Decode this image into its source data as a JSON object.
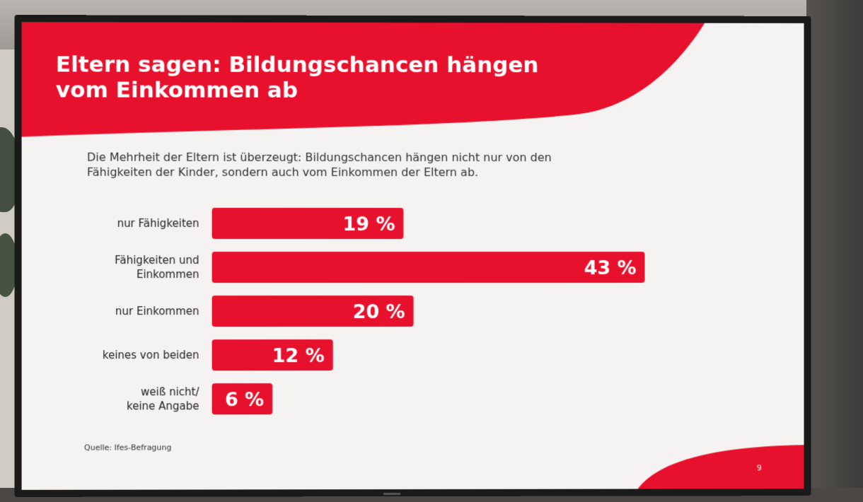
{
  "slide": {
    "title": "Eltern sagen: Bildungschancen hängen vom Einkommen ab",
    "subtitle": "Die Mehrheit der Eltern ist überzeugt: Bildungschancen hängen nicht nur von den Fähigkeiten der Kinder, sondern auch vom Einkommen der Eltern ab.",
    "source": "Quelle: Ifes-Befragung",
    "page_number": "9"
  },
  "colors": {
    "accent": "#e8112d",
    "background": "#f4f3f2",
    "text": "#333333"
  },
  "chart_data": {
    "type": "bar",
    "orientation": "horizontal",
    "categories": [
      "nur Fähigkeiten",
      "Fähigkeiten und Einkommen",
      "nur Einkommen",
      "keines von beiden",
      "weiß nicht/ keine Angabe"
    ],
    "category_lines": [
      [
        "nur Fähigkeiten"
      ],
      [
        "Fähigkeiten und",
        "Einkommen"
      ],
      [
        "nur Einkommen"
      ],
      [
        "keines von beiden"
      ],
      [
        "weiß nicht/",
        "keine Angabe"
      ]
    ],
    "values": [
      19,
      43,
      20,
      12,
      6
    ],
    "value_labels": [
      "19 %",
      "43 %",
      "20 %",
      "12 %",
      "6 %"
    ],
    "unit": "%",
    "xlim": [
      0,
      43
    ],
    "grid": false,
    "legend": "none"
  }
}
